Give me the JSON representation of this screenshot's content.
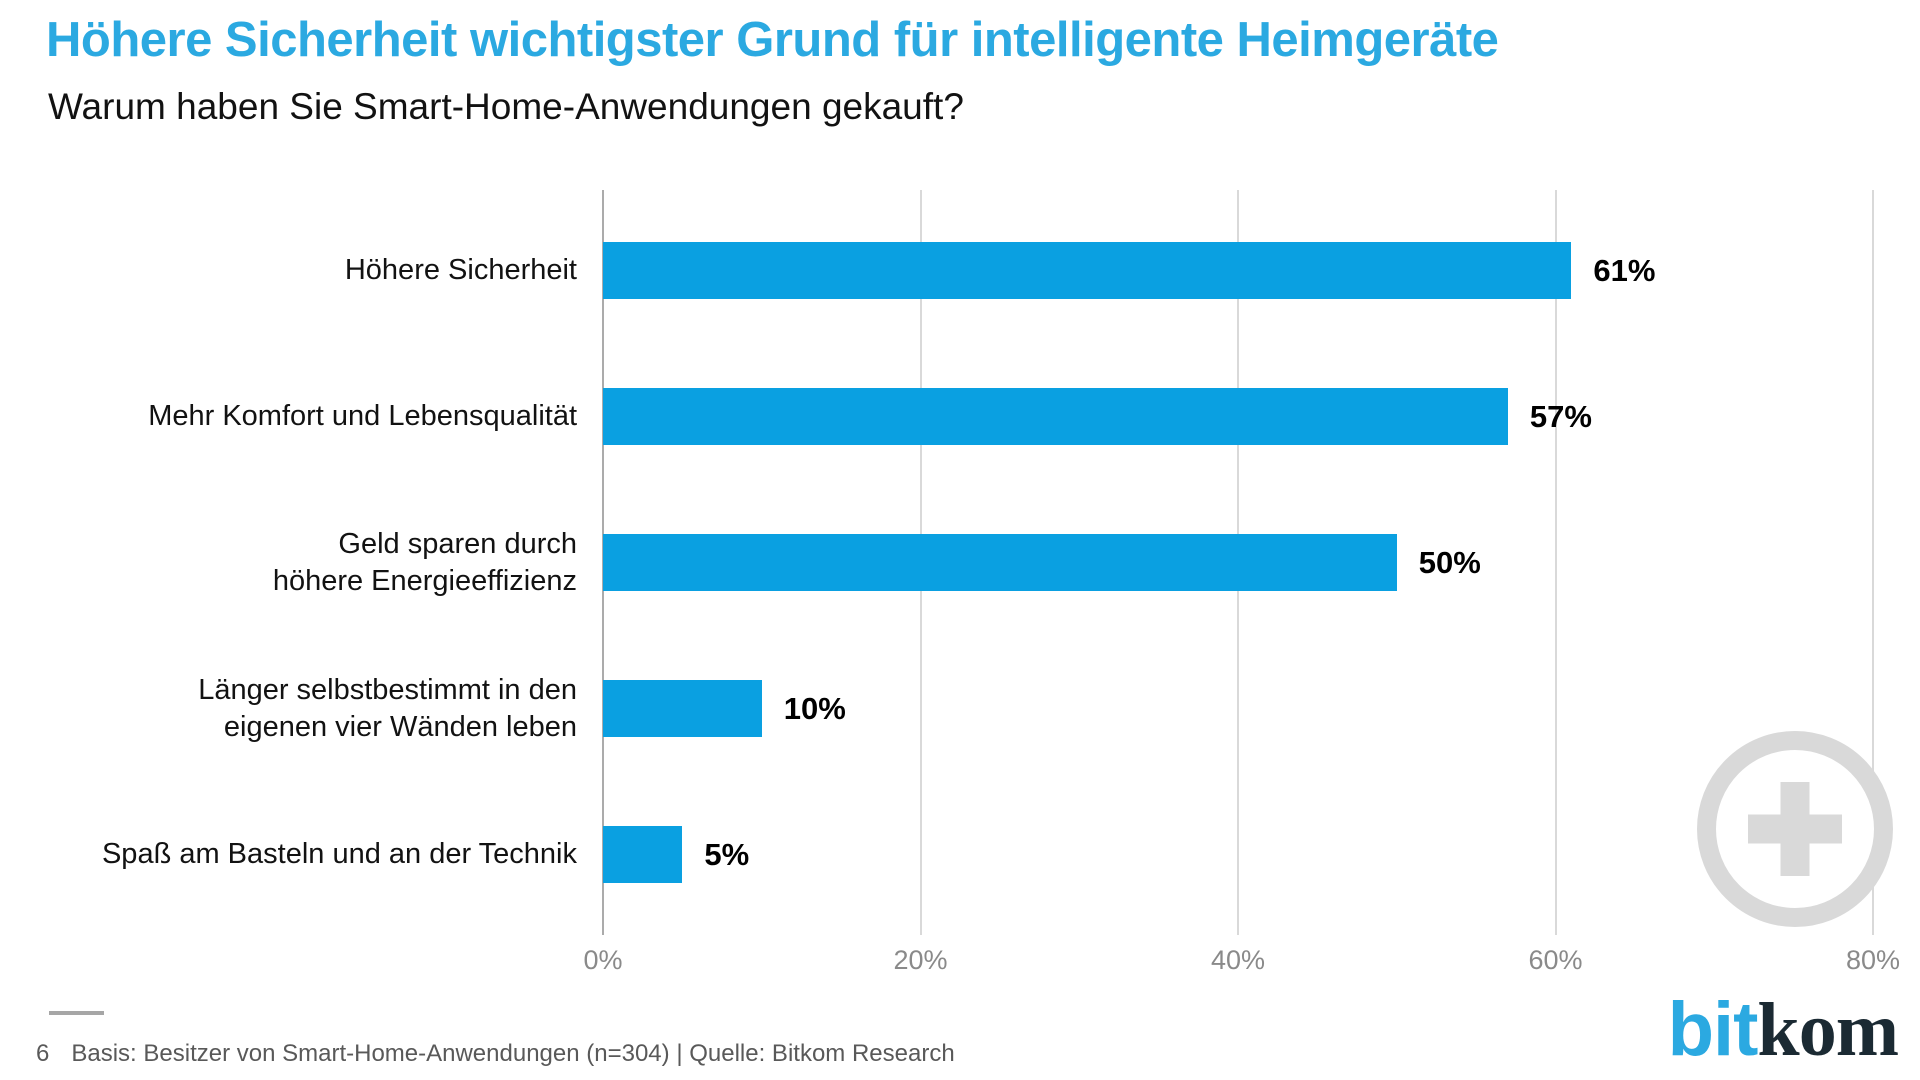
{
  "colors": {
    "title_blue": "#2ba9e1",
    "bar_blue": "#0aa0e1",
    "gridline_gray": "#d9d9d9",
    "axis_gray": "#ababab",
    "tick_gray": "#8a8a8a",
    "footer_gray": "#595959",
    "watermark_gray": "#d9d9d9",
    "logo_dark": "#1b2a33"
  },
  "header": {
    "title": "Höhere Sicherheit wichtigster Grund für intelligente Heimgeräte",
    "subtitle": "Warum haben Sie Smart-Home-Anwendungen gekauft?"
  },
  "chart_data": {
    "type": "bar",
    "orientation": "horizontal",
    "categories": [
      "Höhere Sicherheit",
      "Mehr Komfort und Lebensqualität",
      "Geld sparen durch\nhöhere Energieeffizienz",
      "Länger selbstbestimmt in den\neigenen vier Wänden leben",
      "Spaß am Basteln und an der Technik"
    ],
    "values": [
      61,
      57,
      50,
      10,
      5
    ],
    "value_labels": [
      "61%",
      "57%",
      "50%",
      "10%",
      "5%"
    ],
    "xlim": [
      0,
      80
    ],
    "x_ticks": [
      "0%",
      "20%",
      "40%",
      "60%",
      "80%"
    ],
    "x_tick_values": [
      0,
      20,
      40,
      60,
      80
    ],
    "grid": true,
    "legend": "none",
    "bar_color": "#0aa0e1"
  },
  "footer": {
    "page_number": "6",
    "source": "Basis: Besitzer von Smart-Home-Anwendungen (n=304) | Quelle: Bitkom Research"
  },
  "logo": {
    "part1": "bit",
    "part2": "kom"
  }
}
